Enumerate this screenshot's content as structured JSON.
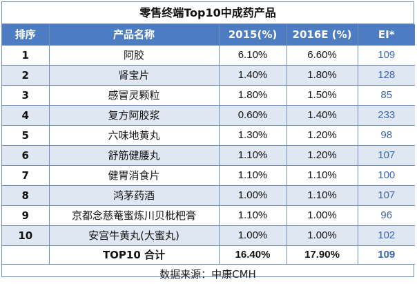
{
  "title": "零售终端Top10中成药产品",
  "headers": {
    "rank": "排序",
    "name": "产品名称",
    "y2015": "2015(%)",
    "y2016": "2016E (%)",
    "ei": "EI*"
  },
  "rows": [
    {
      "rank": "1",
      "name": "阿胶",
      "y2015": "6.10%",
      "y2016": "6.60%",
      "ei": "109"
    },
    {
      "rank": "2",
      "name": "肾宝片",
      "y2015": "1.40%",
      "y2016": "1.80%",
      "ei": "128"
    },
    {
      "rank": "3",
      "name": "感冒灵颗粒",
      "y2015": "1.80%",
      "y2016": "1.50%",
      "ei": "85"
    },
    {
      "rank": "4",
      "name": "复方阿胶浆",
      "y2015": "0.60%",
      "y2016": "1.40%",
      "ei": "233"
    },
    {
      "rank": "5",
      "name": "六味地黄丸",
      "y2015": "1.30%",
      "y2016": "1.20%",
      "ei": "98"
    },
    {
      "rank": "6",
      "name": "舒筋健腰丸",
      "y2015": "1.10%",
      "y2016": "1.20%",
      "ei": "107"
    },
    {
      "rank": "7",
      "name": "健胃消食片",
      "y2015": "1.10%",
      "y2016": "1.10%",
      "ei": "100"
    },
    {
      "rank": "8",
      "name": "鸿茅药酒",
      "y2015": "1.00%",
      "y2016": "1.10%",
      "ei": "107"
    },
    {
      "rank": "9",
      "name": "京都念慈菴蜜炼川贝枇杷膏",
      "y2015": "1.10%",
      "y2016": "1.00%",
      "ei": "96"
    },
    {
      "rank": "10",
      "name": "安宫牛黄丸(大蜜丸)",
      "y2015": "1.00%",
      "y2016": "1.00%",
      "ei": "102"
    }
  ],
  "total": {
    "label": "TOP10 合计",
    "y2015": "16.40%",
    "y2016": "17.90%",
    "ei": "109"
  },
  "source": "数据来源：中康CMH"
}
